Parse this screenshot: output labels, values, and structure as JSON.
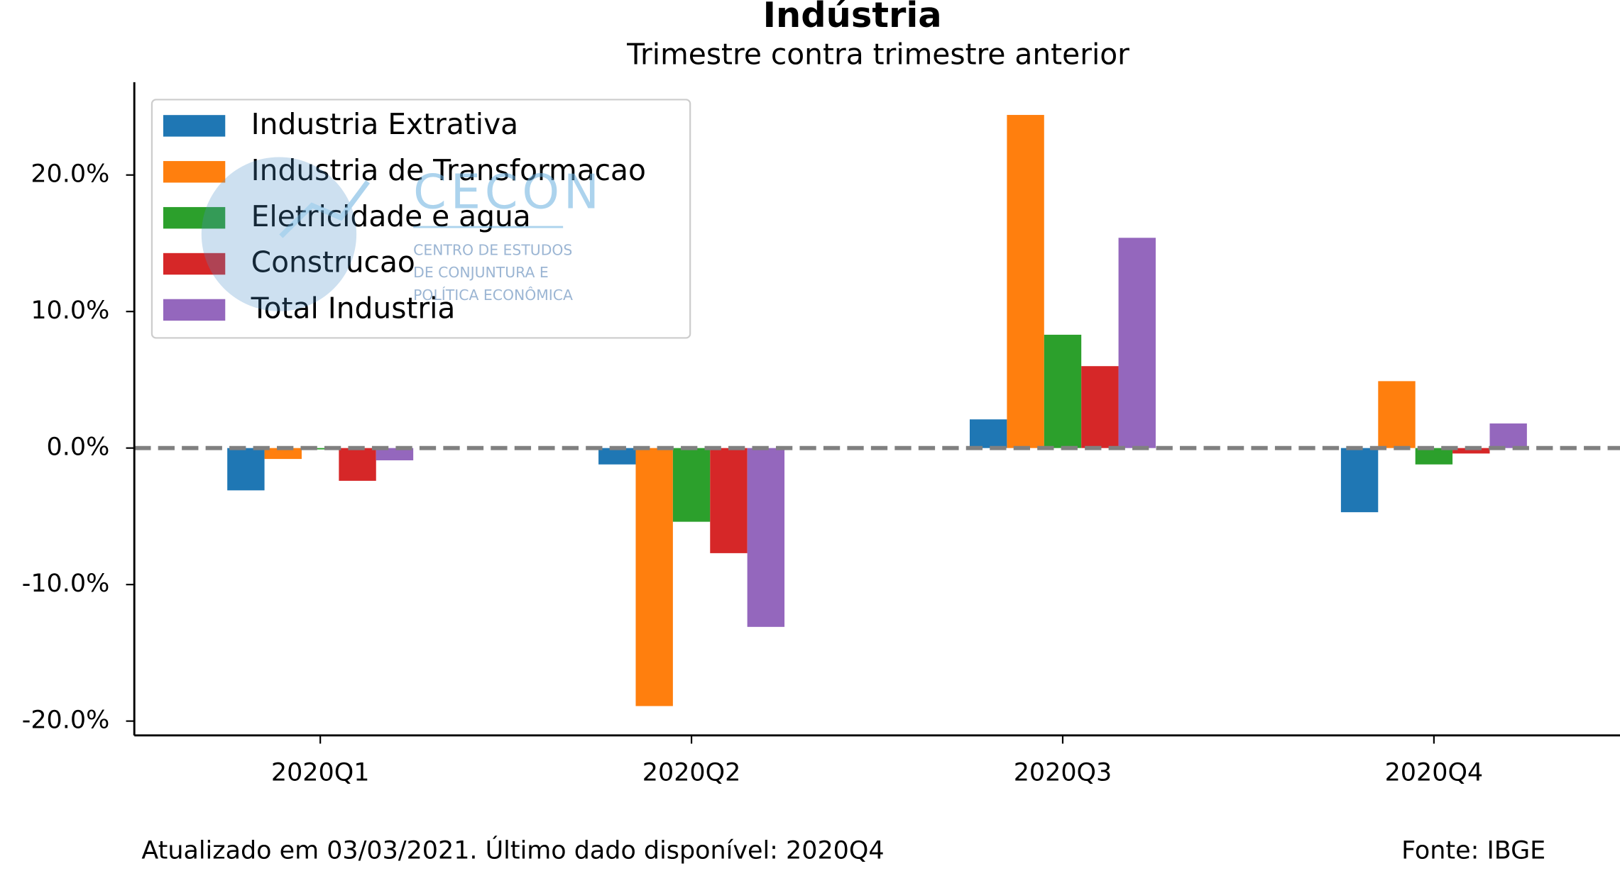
{
  "chart_data": {
    "type": "bar",
    "title": "Indústria",
    "subtitle": "Trimestre contra trimestre anterior",
    "categories": [
      "2020Q1",
      "2020Q2",
      "2020Q3",
      "2020Q4"
    ],
    "series": [
      {
        "name": "Industria Extrativa",
        "color": "#1f77b4",
        "values": [
          -3.1,
          -1.2,
          2.1,
          -4.7
        ]
      },
      {
        "name": "Industria de Transformacao",
        "color": "#ff7f0e",
        "values": [
          -0.8,
          -18.9,
          24.4,
          4.9
        ]
      },
      {
        "name": "Eletricidade e agua",
        "color": "#2ca02c",
        "values": [
          -0.1,
          -5.4,
          8.3,
          -1.2
        ]
      },
      {
        "name": "Construcao",
        "color": "#d62728",
        "values": [
          -2.4,
          -7.7,
          6.0,
          -0.4
        ]
      },
      {
        "name": "Total Industria",
        "color": "#9467bd",
        "values": [
          -0.9,
          -13.1,
          15.4,
          1.8
        ]
      }
    ],
    "ylim": [
      -21.05,
      26.8
    ],
    "yticks": [
      {
        "value": -20,
        "label": "-20.0%"
      },
      {
        "value": -10,
        "label": "-10.0%"
      },
      {
        "value": 0,
        "label": "0.0%"
      },
      {
        "value": 10,
        "label": "10.0%"
      },
      {
        "value": 20,
        "label": "20.0%"
      }
    ],
    "zero_line": true,
    "legend": "upper left",
    "footer_left": "Atualizado em 03/03/2021. Último dado disponível: 2020Q4",
    "footer_right": "Fonte: IBGE",
    "watermark": [
      "CECON",
      "CENTRO DE ESTUDOS",
      "DE CONJUNTURA E",
      "POLÍTICA ECONÔMICA"
    ]
  }
}
